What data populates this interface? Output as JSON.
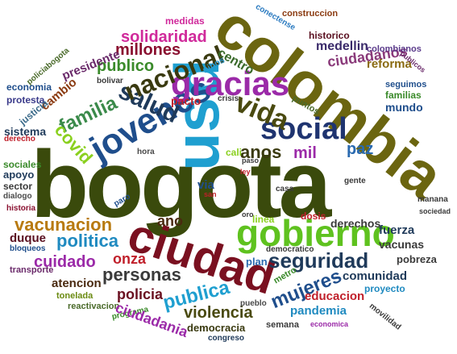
{
  "words": [
    {
      "text": "bogota",
      "color": "#3a4a0c"
    },
    {
      "text": "colombia",
      "color": "#6b6510"
    },
    {
      "text": "usd",
      "color": "#1f9fd0"
    },
    {
      "text": "ciudad",
      "color": "#7a1020"
    },
    {
      "text": "jovenes",
      "color": "#1f4e8c"
    },
    {
      "text": "gracias",
      "color": "#9b2aa8"
    },
    {
      "text": "gobierno",
      "color": "#5fc21f"
    },
    {
      "text": "social",
      "color": "#1f3470"
    },
    {
      "text": "vida",
      "color": "#4a4a10"
    },
    {
      "text": "salud",
      "color": "#1f3a5a"
    },
    {
      "text": "nacional",
      "color": "#3a3a10"
    },
    {
      "text": "familia",
      "color": "#3a8a4a"
    },
    {
      "text": "covid",
      "color": "#8ad01f"
    },
    {
      "text": "seguridad",
      "color": "#1f3a5a"
    },
    {
      "text": "vacunacion",
      "color": "#b87a10"
    },
    {
      "text": "politica",
      "color": "#1f8ac0"
    },
    {
      "text": "personas",
      "color": "#3a3a3a"
    },
    {
      "text": "publica",
      "color": "#1f9fd0"
    },
    {
      "text": "mujeres",
      "color": "#1f4e8c"
    },
    {
      "text": "paz",
      "color": "#2a6ab0"
    },
    {
      "text": "anos",
      "color": "#3a3a10"
    },
    {
      "text": "mil",
      "color": "#9b2aa8"
    },
    {
      "text": "solidaridad",
      "color": "#d02a9b"
    },
    {
      "text": "millones",
      "color": "#8a1030"
    },
    {
      "text": "publico",
      "color": "#3a8a2a"
    },
    {
      "text": "cambio",
      "color": "#8a3a10"
    },
    {
      "text": "presidente",
      "color": "#6a2a6a"
    },
    {
      "text": "centro",
      "color": "#3a6a2a"
    },
    {
      "text": "medellin",
      "color": "#3a2a6a"
    },
    {
      "text": "ciudadanos",
      "color": "#8a3a7a"
    },
    {
      "text": "reforma",
      "color": "#8a6a10"
    },
    {
      "text": "historico",
      "color": "#5a1020"
    },
    {
      "text": "colombianos",
      "color": "#5a3a8a"
    },
    {
      "text": "medidas",
      "color": "#d02a9b"
    },
    {
      "text": "construccion",
      "color": "#8a3a10"
    },
    {
      "text": "conectense",
      "color": "#2a7ac0"
    },
    {
      "text": "policiabogota",
      "color": "#4a6a2a"
    },
    {
      "text": "economia",
      "color": "#1f4e8c"
    },
    {
      "text": "protesta",
      "color": "#3a3a8a"
    },
    {
      "text": "justicia",
      "color": "#3a6a8a"
    },
    {
      "text": "sistema",
      "color": "#1f3a5a"
    },
    {
      "text": "derecho",
      "color": "#c01f2a"
    },
    {
      "text": "sociales",
      "color": "#3a8a2a"
    },
    {
      "text": "apoyo",
      "color": "#1f3a5a"
    },
    {
      "text": "sector",
      "color": "#3a3a3a"
    },
    {
      "text": "dialogo",
      "color": "#4a4a4a"
    },
    {
      "text": "historia",
      "color": "#8a1030"
    },
    {
      "text": "bolivar",
      "color": "#3a3a3a"
    },
    {
      "text": "ninos",
      "color": "#2a9ad0"
    },
    {
      "text": "pacto",
      "color": "#c01f2a"
    },
    {
      "text": "crisis",
      "color": "#3a3a3a"
    },
    {
      "text": "hora",
      "color": "#4a4a4a"
    },
    {
      "text": "cali",
      "color": "#8ad01f"
    },
    {
      "text": "paso",
      "color": "#3a3a3a"
    },
    {
      "text": "ley",
      "color": "#c01f2a"
    },
    {
      "text": "via",
      "color": "#1f4e8c"
    },
    {
      "text": "san",
      "color": "#c01f2a"
    },
    {
      "text": "casa",
      "color": "#3a3a3a"
    },
    {
      "text": "paro",
      "color": "#1f4e8c"
    },
    {
      "text": "gente",
      "color": "#3a3a3a"
    },
    {
      "text": "puntos",
      "color": "#4a6a2a"
    },
    {
      "text": "mundo",
      "color": "#1f4e8c"
    },
    {
      "text": "familias",
      "color": "#3a8a2a"
    },
    {
      "text": "seguimos",
      "color": "#1f4e8c"
    },
    {
      "text": "publicos",
      "color": "#6a2a6a"
    },
    {
      "text": "manana",
      "color": "#3a3a3a"
    },
    {
      "text": "sociedad",
      "color": "#3a3a3a"
    },
    {
      "text": "duque",
      "color": "#5a1020"
    },
    {
      "text": "bloqueos",
      "color": "#1f4e8c"
    },
    {
      "text": "transporte",
      "color": "#6a2a6a"
    },
    {
      "text": "atencion",
      "color": "#4a2a10"
    },
    {
      "text": "tonelada",
      "color": "#6a8a10"
    },
    {
      "text": "reactivacion",
      "color": "#4a6a2a"
    },
    {
      "text": "programa",
      "color": "#3a8a2a"
    },
    {
      "text": "ano",
      "color": "#4a2a10"
    },
    {
      "text": "cuidado",
      "color": "#9b2aa8"
    },
    {
      "text": "onza",
      "color": "#c01f2a"
    },
    {
      "text": "policia",
      "color": "#6a1020"
    },
    {
      "text": "ciudadania",
      "color": "#9b2aa8"
    },
    {
      "text": "violencia",
      "color": "#4a4a10"
    },
    {
      "text": "democracia",
      "color": "#3a3a10"
    },
    {
      "text": "pueblo",
      "color": "#4a4a4a"
    },
    {
      "text": "congreso",
      "color": "#1f3a5a"
    },
    {
      "text": "semana",
      "color": "#3a3a3a"
    },
    {
      "text": "economica",
      "color": "#9b2aa8"
    },
    {
      "text": "movilidad",
      "color": "#3a3a3a"
    },
    {
      "text": "pandemia",
      "color": "#1f8ac0"
    },
    {
      "text": "educacion",
      "color": "#c01f2a"
    },
    {
      "text": "proyecto",
      "color": "#1f8ac0"
    },
    {
      "text": "comunidad",
      "color": "#1f3a5a"
    },
    {
      "text": "pobreza",
      "color": "#3a3a3a"
    },
    {
      "text": "vacunas",
      "color": "#3a3a3a"
    },
    {
      "text": "fuerza",
      "color": "#1f3a5a"
    },
    {
      "text": "derechos",
      "color": "#3a3a3a"
    },
    {
      "text": "dosis",
      "color": "#c01f2a"
    },
    {
      "text": "linea",
      "color": "#8ad01f"
    },
    {
      "text": "oro",
      "color": "#3a3a3a"
    },
    {
      "text": "democratico",
      "color": "#3a3a3a"
    },
    {
      "text": "plan",
      "color": "#2a6ab0"
    },
    {
      "text": "metro",
      "color": "#3a8a2a"
    }
  ]
}
